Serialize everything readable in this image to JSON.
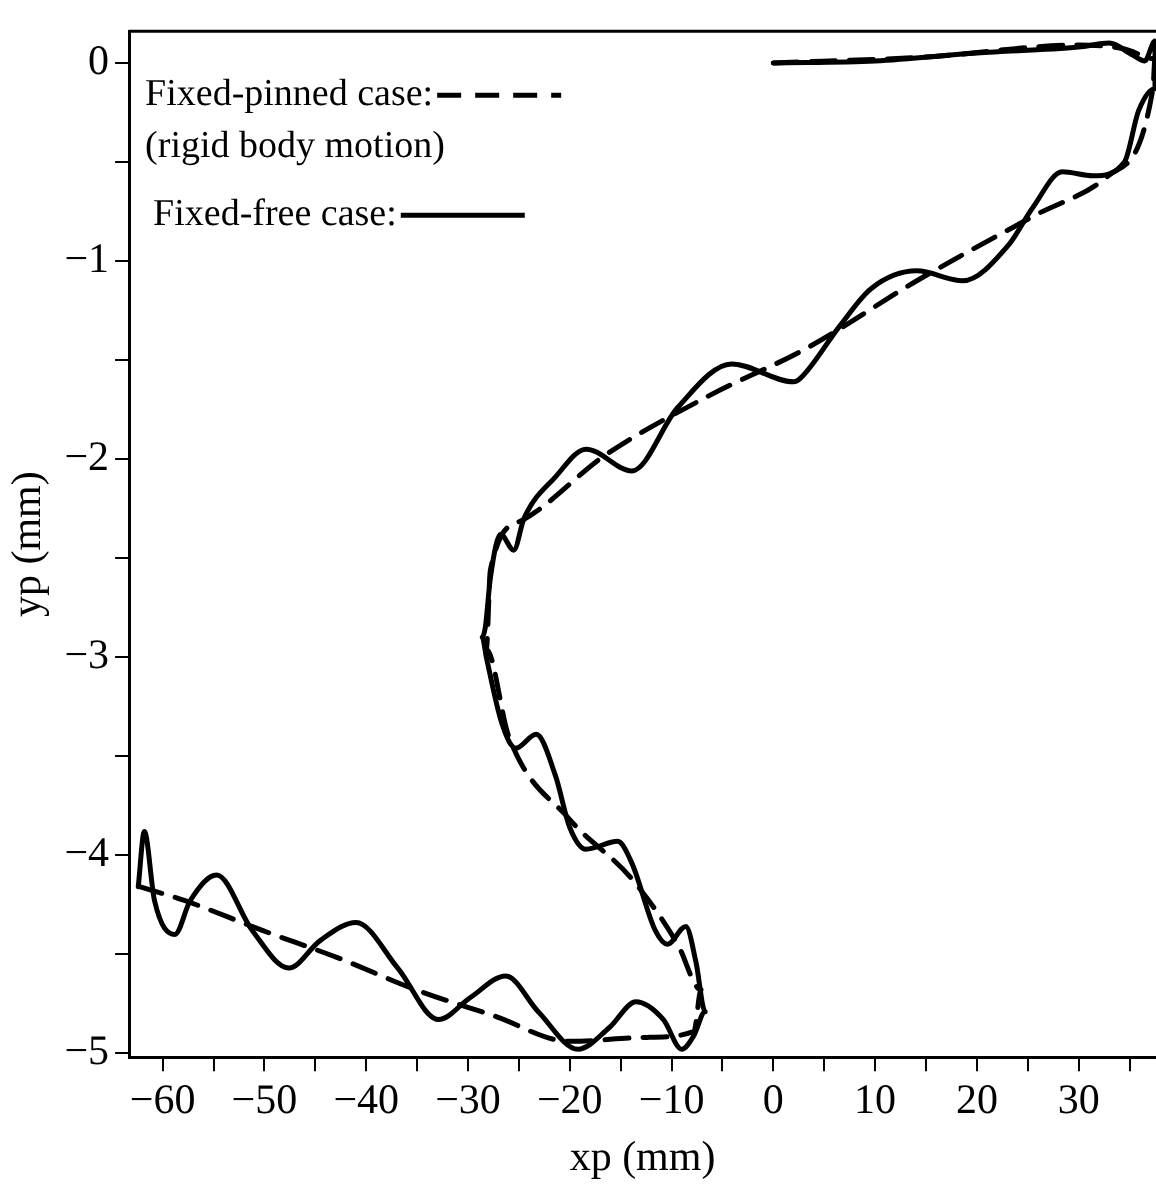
{
  "chart_data": {
    "type": "line",
    "xlabel": "xp (mm)",
    "ylabel": "yp (mm)",
    "xlim": [
      -63.3,
      37.6
    ],
    "ylim": [
      -5.02,
      0.16
    ],
    "xticks": [
      -60,
      {
        "value": -55,
        "label": null
      },
      -50,
      {
        "value": -45,
        "label": null
      },
      -40,
      {
        "value": -35,
        "label": null
      },
      -30,
      {
        "value": -25,
        "label": null
      },
      -20,
      {
        "value": -15,
        "label": null
      },
      -10,
      {
        "value": -5,
        "label": null
      },
      0,
      {
        "value": 5,
        "label": null
      },
      10,
      {
        "value": 15,
        "label": null
      },
      20,
      {
        "value": 25,
        "label": null
      },
      30,
      {
        "value": 35,
        "label": null
      }
    ],
    "yticks": [
      -5,
      {
        "value": -4.5,
        "label": null
      },
      -4,
      {
        "value": -3.5,
        "label": null
      },
      -3,
      {
        "value": -2.5,
        "label": null
      },
      -2,
      {
        "value": -1.5,
        "label": null
      },
      -1,
      {
        "value": -0.5,
        "label": null
      },
      0
    ],
    "grid": false,
    "legend": "top left",
    "annotations": [
      "(rigid body motion)"
    ],
    "series": [
      {
        "name": "Fixed-pinned case:",
        "color": "#000000",
        "line_style": "dashed",
        "x": [
          0,
          15,
          30,
          34.5,
          37.5,
          37.3,
          32.9,
          25.7,
          14.1,
          3.3,
          -6.3,
          -16.5,
          -24.7,
          -27.8,
          -28.2,
          -26,
          -20,
          -13.9,
          -9.4,
          -7.1,
          -7.8,
          -12.4,
          -20,
          -27.5,
          -35.1,
          -42.7,
          -50.2,
          -57.8,
          -62.2
        ],
        "values": [
          0,
          0.03,
          0.09,
          0.07,
          0.02,
          -0.13,
          -0.57,
          -0.77,
          -1.1,
          -1.44,
          -1.68,
          -1.98,
          -2.31,
          -2.56,
          -2.96,
          -3.4,
          -3.82,
          -4.12,
          -4.45,
          -4.68,
          -4.89,
          -4.92,
          -4.94,
          -4.81,
          -4.68,
          -4.52,
          -4.38,
          -4.23,
          -4.16
        ]
      },
      {
        "name": "Fixed-free case:",
        "color": "#000000",
        "line_style": "solid",
        "x": [
          0,
          10,
          20,
          30,
          33,
          35.3,
          36.5,
          37.5,
          37.5,
          35.9,
          34.5,
          31.4,
          28.4,
          25.5,
          23.1,
          18.6,
          14.1,
          9.6,
          6.5,
          2.7,
          2,
          -4.1,
          -9.4,
          -13.9,
          -18.4,
          -21.4,
          -24.5,
          -25.5,
          -26.8,
          -27.8,
          -28.3,
          -28.6,
          -28.2,
          -26.7,
          -25.3,
          -23.3,
          -21.4,
          -20,
          -18.4,
          -15.3,
          -13.9,
          -11.6,
          -10.4,
          -8.6,
          -7.6,
          -6.7,
          -7.8,
          -9,
          -10.8,
          -13.5,
          -16.1,
          -19.2,
          -23.1,
          -26.3,
          -29.8,
          -32.9,
          -36.9,
          -41,
          -44.5,
          -47.6,
          -51.2,
          -54.7,
          -57.3,
          -58.8,
          -60.8,
          -61.8,
          -62.4
        ],
        "values": [
          0,
          0.01,
          0.05,
          0.08,
          0.1,
          0.04,
          0.01,
          0.11,
          -0.13,
          -0.24,
          -0.5,
          -0.57,
          -0.55,
          -0.73,
          -0.92,
          -1.1,
          -1.05,
          -1.14,
          -1.33,
          -1.59,
          -1.61,
          -1.52,
          -1.74,
          -2.06,
          -1.95,
          -2.09,
          -2.3,
          -2.46,
          -2.38,
          -2.6,
          -2.85,
          -2.9,
          -3,
          -3.33,
          -3.46,
          -3.39,
          -3.6,
          -3.86,
          -3.97,
          -3.93,
          -4.04,
          -4.38,
          -4.45,
          -4.36,
          -4.54,
          -4.79,
          -4.91,
          -4.98,
          -4.83,
          -4.74,
          -4.87,
          -4.98,
          -4.79,
          -4.61,
          -4.72,
          -4.83,
          -4.57,
          -4.34,
          -4.43,
          -4.57,
          -4.38,
          -4.1,
          -4.23,
          -4.4,
          -4.23,
          -3.88,
          -4.16
        ]
      }
    ]
  }
}
